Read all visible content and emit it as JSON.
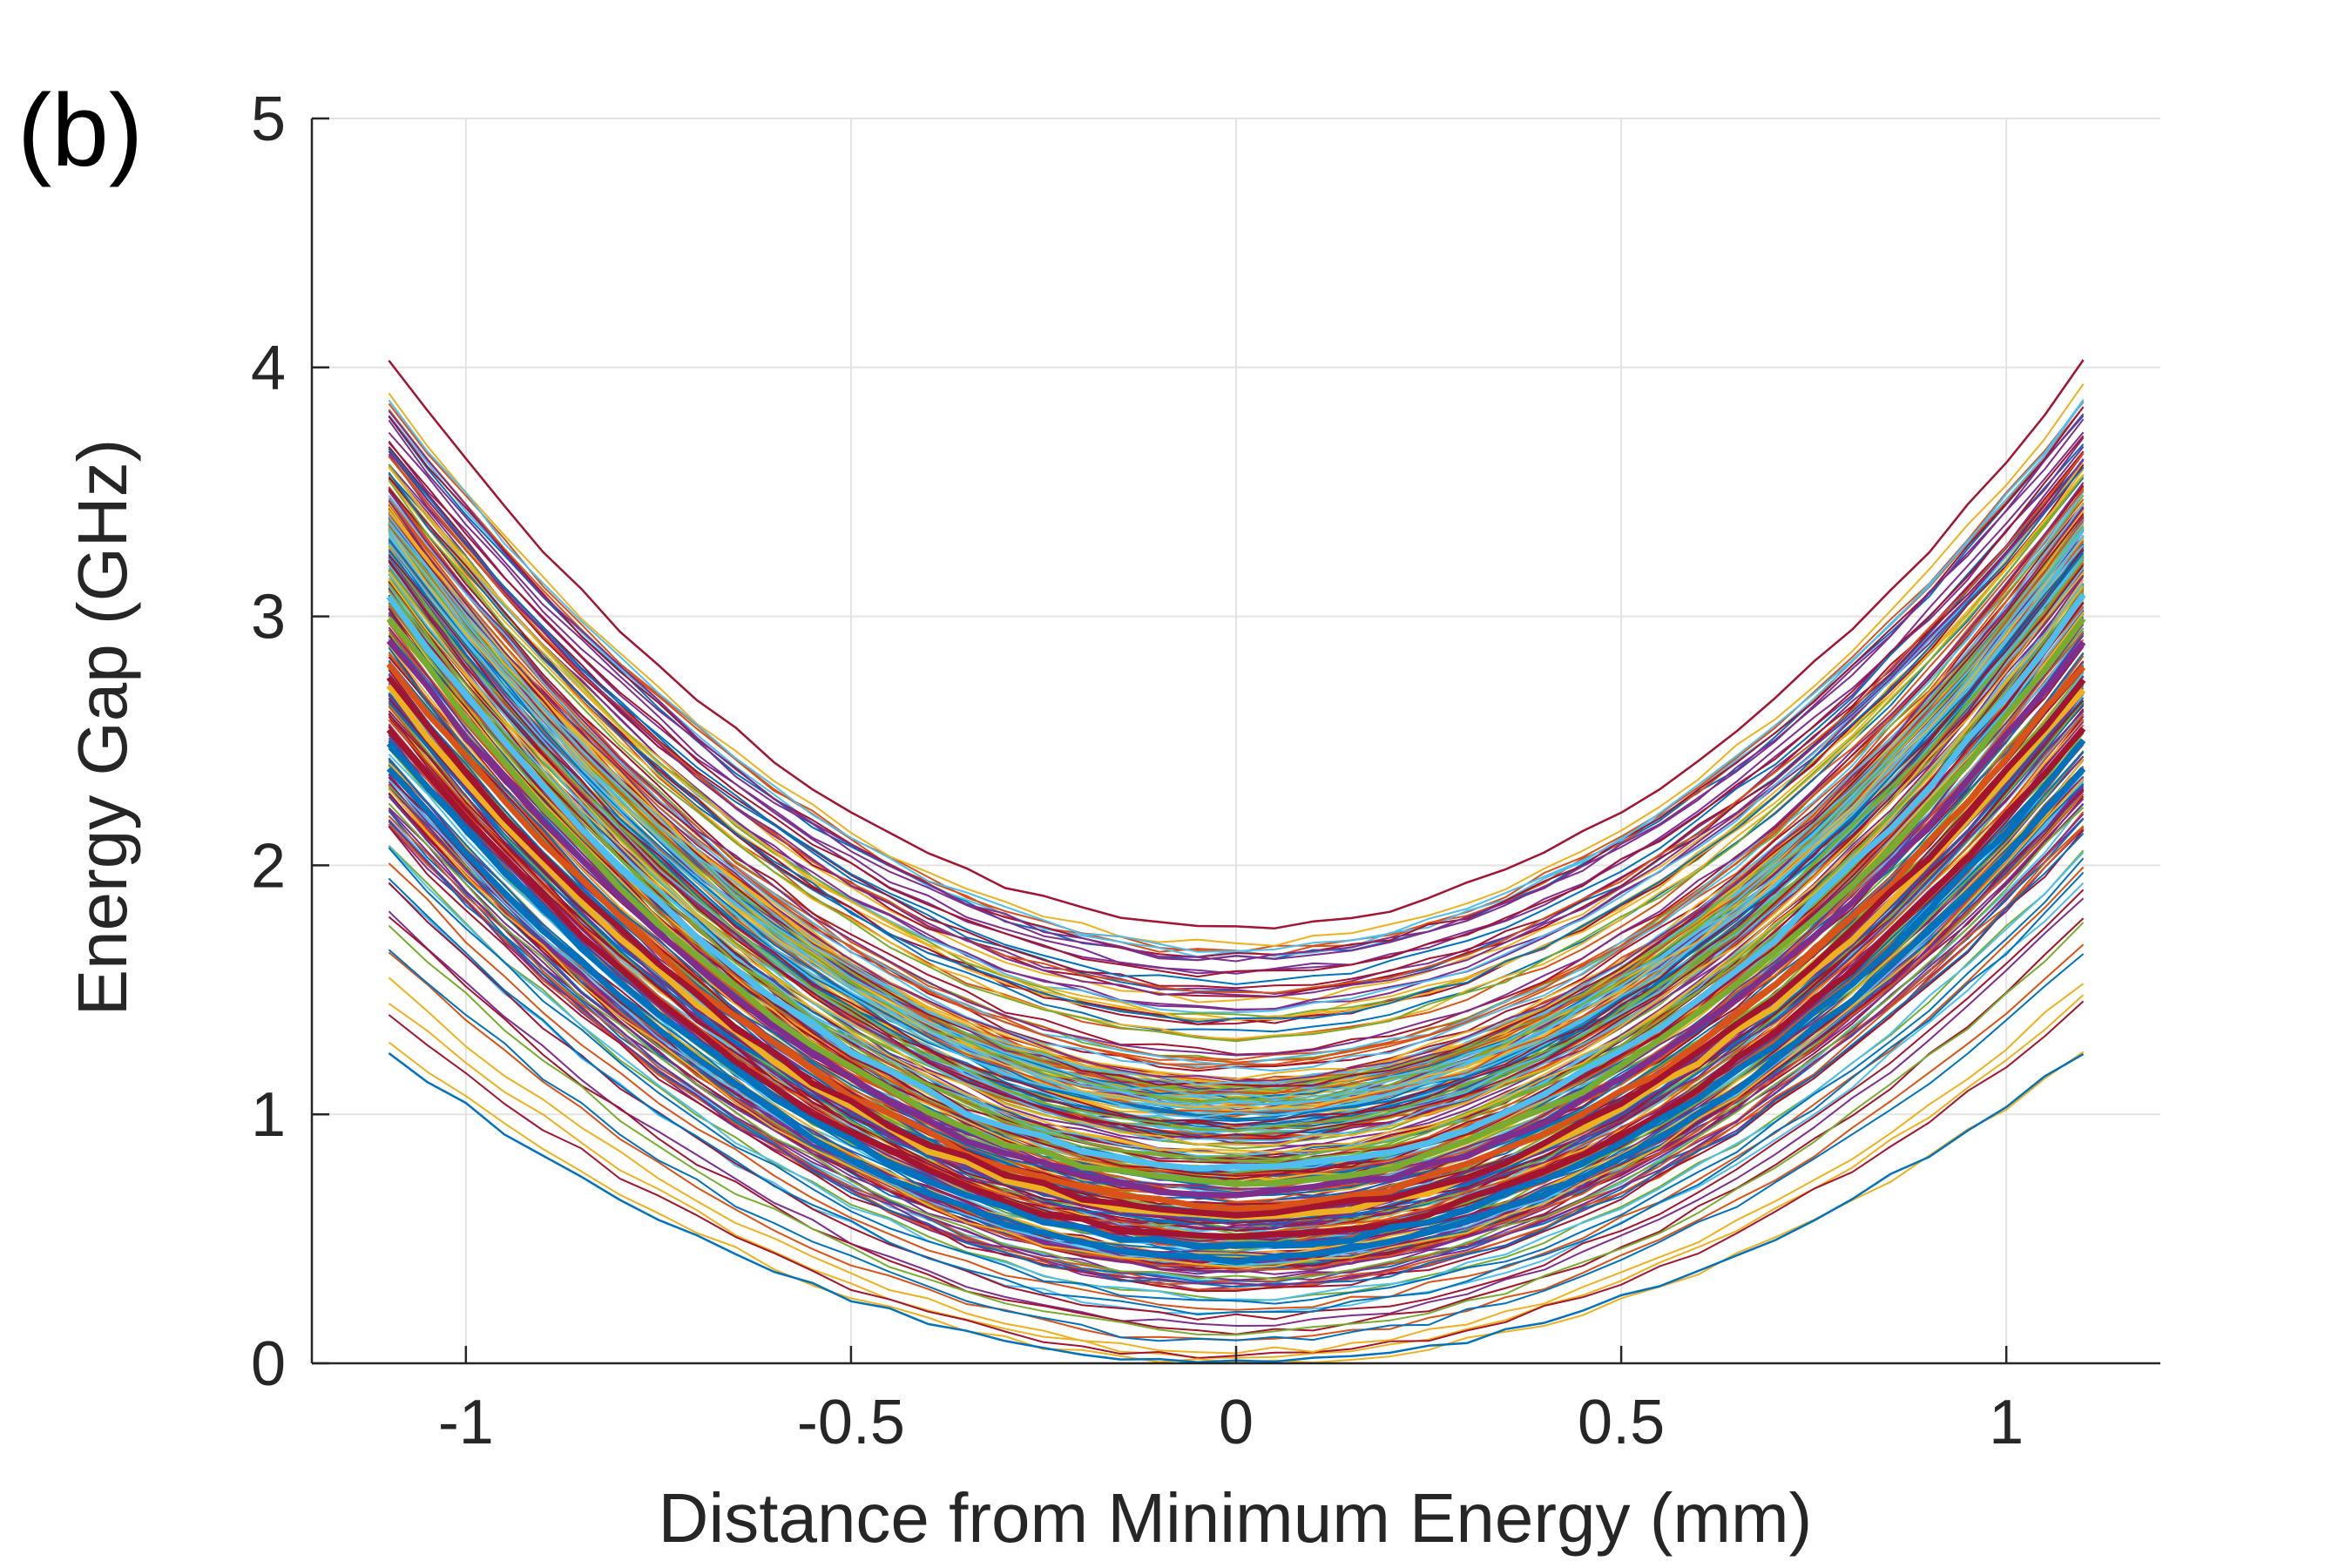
{
  "panel_label": "(b)",
  "chart_data": {
    "type": "line",
    "title": "",
    "xlabel": "Distance from Minimum Energy (mm)",
    "ylabel": "Energy Gap (GHz)",
    "xlim": [
      -1.2,
      1.2
    ],
    "ylim": [
      0,
      5
    ],
    "xticks": [
      -1,
      -0.5,
      0,
      0.5,
      1
    ],
    "xtick_labels": [
      "-1",
      "-0.5",
      "0",
      "0.5",
      "1"
    ],
    "yticks": [
      0,
      1,
      2,
      3,
      4,
      5
    ],
    "ytick_labels": [
      "0",
      "1",
      "2",
      "3",
      "4",
      "5"
    ],
    "grid": true,
    "legend": "none",
    "x_range_of_data": [
      -1.1,
      1.1
    ],
    "palette": [
      "#0072BD",
      "#D95319",
      "#EDB120",
      "#7E2F8E",
      "#77AC30",
      "#4DBEEE",
      "#A2142F"
    ],
    "series_description": "several hundred near-parabolic curves symmetric about x = 0",
    "series": [
      {
        "min_gap": 0.0,
        "edge_value": 1.25
      },
      {
        "min_gap": 0.02,
        "edge_value": 1.4
      },
      {
        "min_gap": 0.05,
        "edge_value": 1.55
      },
      {
        "min_gap": 0.1,
        "edge_value": 1.7
      },
      {
        "min_gap": 0.15,
        "edge_value": 1.85
      },
      {
        "min_gap": 0.2,
        "edge_value": 1.95
      },
      {
        "min_gap": 0.25,
        "edge_value": 2.05
      },
      {
        "min_gap": 0.3,
        "edge_value": 2.15
      },
      {
        "min_gap": 0.35,
        "edge_value": 2.25
      },
      {
        "min_gap": 0.4,
        "edge_value": 2.35
      },
      {
        "min_gap": 0.45,
        "edge_value": 2.45
      },
      {
        "min_gap": 0.5,
        "edge_value": 2.55
      },
      {
        "min_gap": 0.55,
        "edge_value": 2.65
      },
      {
        "min_gap": 0.6,
        "edge_value": 2.75
      },
      {
        "min_gap": 0.65,
        "edge_value": 2.85
      },
      {
        "min_gap": 0.7,
        "edge_value": 2.95
      },
      {
        "min_gap": 0.75,
        "edge_value": 3.05
      },
      {
        "min_gap": 0.8,
        "edge_value": 3.1
      },
      {
        "min_gap": 0.85,
        "edge_value": 3.15
      },
      {
        "min_gap": 0.9,
        "edge_value": 3.2
      },
      {
        "min_gap": 0.95,
        "edge_value": 3.25
      },
      {
        "min_gap": 1.0,
        "edge_value": 3.3
      },
      {
        "min_gap": 1.05,
        "edge_value": 3.35
      },
      {
        "min_gap": 1.1,
        "edge_value": 3.4
      },
      {
        "min_gap": 1.15,
        "edge_value": 3.45
      },
      {
        "min_gap": 1.2,
        "edge_value": 3.5
      },
      {
        "min_gap": 1.25,
        "edge_value": 3.52
      },
      {
        "min_gap": 1.3,
        "edge_value": 3.55
      },
      {
        "min_gap": 1.35,
        "edge_value": 3.58
      },
      {
        "min_gap": 1.4,
        "edge_value": 3.6
      },
      {
        "min_gap": 1.45,
        "edge_value": 3.63
      },
      {
        "min_gap": 1.5,
        "edge_value": 3.66
      },
      {
        "min_gap": 1.55,
        "edge_value": 3.7
      },
      {
        "min_gap": 1.6,
        "edge_value": 3.75
      },
      {
        "min_gap": 1.65,
        "edge_value": 3.85
      },
      {
        "min_gap": 1.75,
        "edge_value": 4.02
      }
    ]
  }
}
